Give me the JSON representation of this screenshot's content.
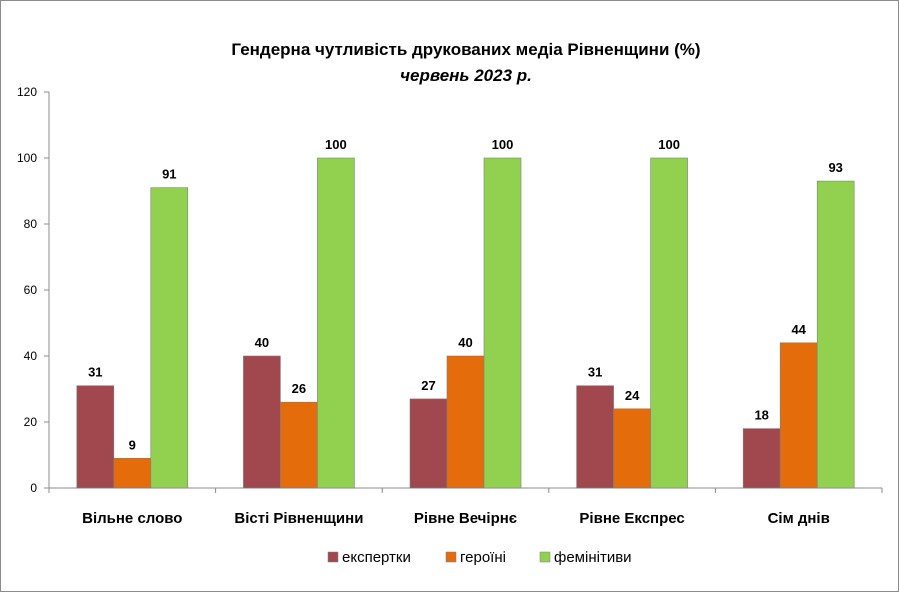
{
  "chart_data": {
    "type": "bar",
    "title": "Гендерна чутливість друкованих медіа Рівненщини (%)",
    "subtitle": "червень 2023 р.",
    "xlabel": "",
    "ylabel": "",
    "ylim": [
      0,
      120
    ],
    "yticks": [
      0,
      20,
      40,
      60,
      80,
      100,
      120
    ],
    "categories": [
      "Вільне слово",
      "Вісті Рівненщини",
      "Рівне Вечірнє",
      "Рівне Експрес",
      "Сім днів"
    ],
    "series": [
      {
        "name": "експертки",
        "color": "#A0484E",
        "values": [
          31,
          40,
          27,
          31,
          18
        ]
      },
      {
        "name": "героїні",
        "color": "#E46C0A",
        "values": [
          9,
          26,
          40,
          24,
          44
        ]
      },
      {
        "name": "фемінітиви",
        "color": "#92D050",
        "values": [
          91,
          100,
          100,
          100,
          93
        ]
      }
    ],
    "grid": false,
    "legend_position": "bottom",
    "data_labels": true
  }
}
